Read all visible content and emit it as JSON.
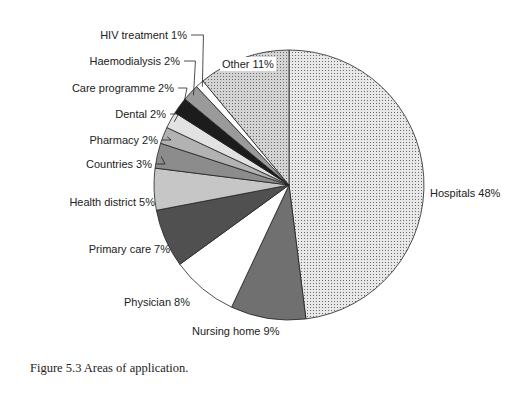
{
  "chart_data": {
    "type": "pie",
    "title": "Figure 5.3 Areas of application.",
    "categories": [
      "Hospitals",
      "Nursing home",
      "Physician",
      "Primary care",
      "Health district",
      "Countries",
      "Pharmacy",
      "Dental",
      "Care programme",
      "Haemodialysis",
      "HIV treatment",
      "Other"
    ],
    "values": [
      48,
      9,
      8,
      7,
      5,
      3,
      2,
      2,
      2,
      2,
      1,
      11
    ],
    "value_labels": [
      "48%",
      "9%",
      "8%",
      "7%",
      "5%",
      "3%",
      "2%",
      "2%",
      "2%",
      "2%",
      "1%",
      "11%"
    ],
    "colors": [
      "#e8e8e8",
      "#707070",
      "#ffffff",
      "#505050",
      "#c6c6c6",
      "#8c8c8c",
      "#b2b2b2",
      "#e2e2e2",
      "#1c1c1c",
      "#9a9a9a",
      "#ffffff",
      "#d4d4d4"
    ],
    "data_labels": true
  }
}
